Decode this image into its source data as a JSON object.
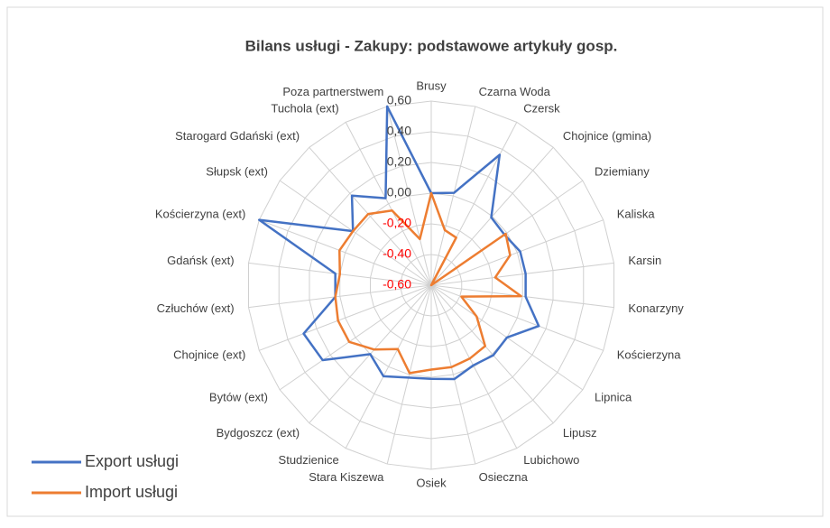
{
  "chart_data": {
    "type": "radar",
    "title": "Bilans usługi - Zakupy: podstawowe artykuły gosp.",
    "categories": [
      "Brusy",
      "Czarna Woda",
      "Czersk",
      "Chojnice (gmina)",
      "Dziemiany",
      "Kaliska",
      "Karsin",
      "Konarzyny",
      "Kościerzyna",
      "Lipnica",
      "Lipusz",
      "Lubichowo",
      "Osieczna",
      "Osiek",
      "Stara Kiszewa",
      "Studzienice",
      "Bydgoszcz (ext)",
      "Bytów (ext)",
      "Chojnice (ext)",
      "Człuchów (ext)",
      "Gdańsk (ext)",
      "Kościerzyna (ext)",
      "Słupsk (ext)",
      "Starogard Gdański (ext)",
      "Tuchola (ext)",
      "Poza partnerstwem"
    ],
    "series": [
      {
        "name": "Export usługi",
        "color": "#4472c4",
        "values": [
          0.0,
          0.02,
          0.36,
          -0.01,
          -0.02,
          0.02,
          0.02,
          0.02,
          0.15,
          0.0,
          0.01,
          -0.01,
          0.03,
          0.01,
          0.02,
          0.07,
          0.0,
          0.26,
          0.29,
          0.03,
          0.03,
          0.6,
          0.02,
          0.18,
          0.04,
          0.6
        ]
      },
      {
        "name": "Import usługi",
        "color": "#ed7d31",
        "values": [
          0.0,
          -0.23,
          -0.25,
          -0.6,
          -0.01,
          -0.05,
          -0.18,
          -0.01,
          -0.39,
          -0.24,
          -0.07,
          -0.06,
          -0.05,
          -0.05,
          -0.01,
          -0.13,
          -0.04,
          0.05,
          0.05,
          0.03,
          0.0,
          0.04,
          0.02,
          0.02,
          -0.05,
          -0.29
        ]
      }
    ],
    "ylim": [
      -0.6,
      0.6
    ],
    "yticks": [
      {
        "value": -0.6,
        "label": "-0,60"
      },
      {
        "value": -0.4,
        "label": "-0,40"
      },
      {
        "value": -0.2,
        "label": "-0,20"
      },
      {
        "value": 0,
        "label": "0,00"
      },
      {
        "value": 0.2,
        "label": "0,20"
      },
      {
        "value": 0.4,
        "label": "0,40"
      },
      {
        "value": 0.6,
        "label": "0,60"
      }
    ],
    "negative_tick_color": "#ff0000",
    "grid": true,
    "legend": "bottom-left"
  }
}
